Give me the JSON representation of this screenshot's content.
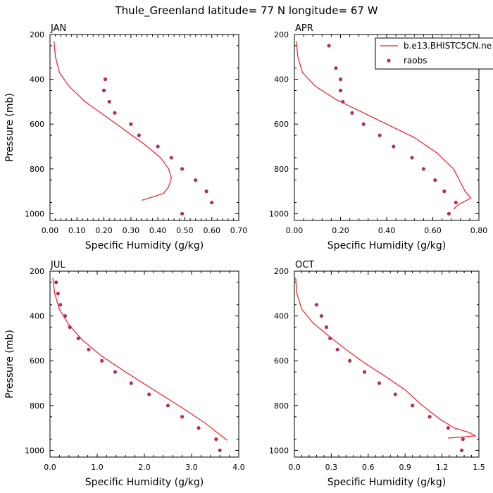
{
  "title": "Thule_Greenland  latitude= 77 N longitude= 67 W",
  "colors": {
    "model": "#ee1c24",
    "raobs": "#b0305a"
  },
  "legend": {
    "model_label": "b.e13.BHISTC5CN.ne",
    "raobs_label": "raobs"
  },
  "chart_data": [
    {
      "type": "line",
      "panel": "JAN",
      "title": "JAN",
      "xlabel": "Specific Humidity (g/kg)",
      "ylabel": "Pressure (mb)",
      "xlim": [
        0,
        0.7
      ],
      "ylim": [
        200,
        1030
      ],
      "y_inverted": true,
      "xticks": [
        "0.00",
        "0.10",
        "0.20",
        "0.30",
        "0.40",
        "0.50",
        "0.60",
        "0.70"
      ],
      "xtick_values": [
        0,
        0.1,
        0.2,
        0.3,
        0.4,
        0.5,
        0.6,
        0.7
      ],
      "yticks": [
        "200",
        "400",
        "600",
        "800",
        "1000"
      ],
      "ytick_values": [
        200,
        400,
        600,
        800,
        1000
      ],
      "series": [
        {
          "style": "line",
          "points": [
            [
              0.015,
              230
            ],
            [
              0.02,
              300
            ],
            [
              0.035,
              370
            ],
            [
              0.07,
              430
            ],
            [
              0.13,
              500
            ],
            [
              0.2,
              560
            ],
            [
              0.27,
              620
            ],
            [
              0.35,
              690
            ],
            [
              0.41,
              750
            ],
            [
              0.44,
              800
            ],
            [
              0.45,
              840
            ],
            [
              0.44,
              880
            ],
            [
              0.42,
              910
            ],
            [
              0.34,
              940
            ]
          ]
        },
        {
          "style": "markers",
          "points": [
            [
              0.205,
              400
            ],
            [
              0.2,
              450
            ],
            [
              0.22,
              500
            ],
            [
              0.24,
              550
            ],
            [
              0.3,
              600
            ],
            [
              0.33,
              650
            ],
            [
              0.4,
              700
            ],
            [
              0.45,
              750
            ],
            [
              0.49,
              800
            ],
            [
              0.54,
              850
            ],
            [
              0.58,
              900
            ],
            [
              0.6,
              950
            ],
            [
              0.49,
              1000
            ]
          ]
        }
      ]
    },
    {
      "type": "line",
      "panel": "APR",
      "title": "APR",
      "xlabel": "Specific Humidity (g/kg)",
      "ylabel": "",
      "xlim": [
        0,
        0.8
      ],
      "ylim": [
        200,
        1030
      ],
      "y_inverted": true,
      "xticks": [
        "0.00",
        "0.20",
        "0.40",
        "0.60",
        "0.80"
      ],
      "xtick_values": [
        0,
        0.2,
        0.4,
        0.6,
        0.8
      ],
      "yticks": [
        "200",
        "400",
        "600",
        "800",
        "1000"
      ],
      "ytick_values": [
        200,
        400,
        600,
        800,
        1000
      ],
      "legend_position": "top-right",
      "series": [
        {
          "name": "b.e13.BHISTC5CN.ne",
          "style": "line",
          "points": [
            [
              0.008,
              230
            ],
            [
              0.015,
              300
            ],
            [
              0.035,
              370
            ],
            [
              0.09,
              430
            ],
            [
              0.18,
              490
            ],
            [
              0.28,
              540
            ],
            [
              0.4,
              600
            ],
            [
              0.52,
              660
            ],
            [
              0.62,
              730
            ],
            [
              0.69,
              800
            ],
            [
              0.72,
              860
            ],
            [
              0.74,
              900
            ],
            [
              0.765,
              930
            ],
            [
              0.71,
              960
            ],
            [
              0.69,
              980
            ]
          ]
        },
        {
          "name": "raobs",
          "style": "markers",
          "points": [
            [
              0.15,
              250
            ],
            [
              0.18,
              350
            ],
            [
              0.2,
              400
            ],
            [
              0.2,
              450
            ],
            [
              0.21,
              500
            ],
            [
              0.25,
              550
            ],
            [
              0.3,
              600
            ],
            [
              0.37,
              650
            ],
            [
              0.43,
              700
            ],
            [
              0.51,
              750
            ],
            [
              0.56,
              800
            ],
            [
              0.61,
              850
            ],
            [
              0.65,
              900
            ],
            [
              0.7,
              950
            ],
            [
              0.67,
              1000
            ]
          ]
        }
      ]
    },
    {
      "type": "line",
      "panel": "JUL",
      "title": "JUL",
      "xlabel": "Specific Humidity (g/kg)",
      "ylabel": "Pressure (mb)",
      "xlim": [
        0,
        4.0
      ],
      "ylim": [
        200,
        1030
      ],
      "y_inverted": true,
      "xticks": [
        "0.0",
        "1.0",
        "2.0",
        "3.0",
        "4.0"
      ],
      "xtick_values": [
        0,
        1,
        2,
        3,
        4
      ],
      "yticks": [
        "200",
        "400",
        "600",
        "800",
        "1000"
      ],
      "ytick_values": [
        200,
        400,
        600,
        800,
        1000
      ],
      "series": [
        {
          "style": "line",
          "points": [
            [
              0.06,
              230
            ],
            [
              0.1,
              300
            ],
            [
              0.2,
              370
            ],
            [
              0.4,
              440
            ],
            [
              0.7,
              510
            ],
            [
              1.1,
              580
            ],
            [
              1.6,
              650
            ],
            [
              2.2,
              730
            ],
            [
              2.8,
              810
            ],
            [
              3.3,
              880
            ],
            [
              3.6,
              930
            ],
            [
              3.75,
              955
            ]
          ]
        },
        {
          "style": "markers",
          "points": [
            [
              0.13,
              250
            ],
            [
              0.17,
              300
            ],
            [
              0.22,
              350
            ],
            [
              0.32,
              400
            ],
            [
              0.42,
              450
            ],
            [
              0.6,
              500
            ],
            [
              0.82,
              550
            ],
            [
              1.1,
              600
            ],
            [
              1.38,
              650
            ],
            [
              1.72,
              700
            ],
            [
              2.1,
              750
            ],
            [
              2.5,
              800
            ],
            [
              2.8,
              850
            ],
            [
              3.15,
              900
            ],
            [
              3.52,
              950
            ],
            [
              3.6,
              1000
            ]
          ]
        }
      ]
    },
    {
      "type": "line",
      "panel": "OCT",
      "title": "OCT",
      "xlabel": "Specific Humidity (g/kg)",
      "ylabel": "",
      "xlim": [
        0,
        1.5
      ],
      "ylim": [
        200,
        1030
      ],
      "y_inverted": true,
      "xticks": [
        "0.0",
        "0.3",
        "0.6",
        "0.9",
        "1.2",
        "1.5"
      ],
      "xtick_values": [
        0,
        0.3,
        0.6,
        0.9,
        1.2,
        1.5
      ],
      "yticks": [
        "200",
        "400",
        "600",
        "800",
        "1000"
      ],
      "ytick_values": [
        200,
        400,
        600,
        800,
        1000
      ],
      "series": [
        {
          "style": "line",
          "points": [
            [
              0.01,
              230
            ],
            [
              0.02,
              300
            ],
            [
              0.06,
              370
            ],
            [
              0.15,
              430
            ],
            [
              0.28,
              490
            ],
            [
              0.42,
              550
            ],
            [
              0.57,
              610
            ],
            [
              0.74,
              670
            ],
            [
              0.9,
              730
            ],
            [
              1.04,
              800
            ],
            [
              1.18,
              860
            ],
            [
              1.3,
              900
            ],
            [
              1.42,
              920
            ],
            [
              1.47,
              935
            ],
            [
              1.38,
              940
            ],
            [
              1.25,
              945
            ]
          ]
        },
        {
          "style": "markers",
          "points": [
            [
              0.18,
              350
            ],
            [
              0.22,
              400
            ],
            [
              0.26,
              450
            ],
            [
              0.29,
              500
            ],
            [
              0.35,
              550
            ],
            [
              0.45,
              600
            ],
            [
              0.57,
              650
            ],
            [
              0.69,
              700
            ],
            [
              0.82,
              750
            ],
            [
              0.96,
              800
            ],
            [
              1.1,
              850
            ],
            [
              1.25,
              900
            ],
            [
              1.37,
              950
            ],
            [
              1.36,
              1000
            ]
          ]
        }
      ]
    }
  ]
}
